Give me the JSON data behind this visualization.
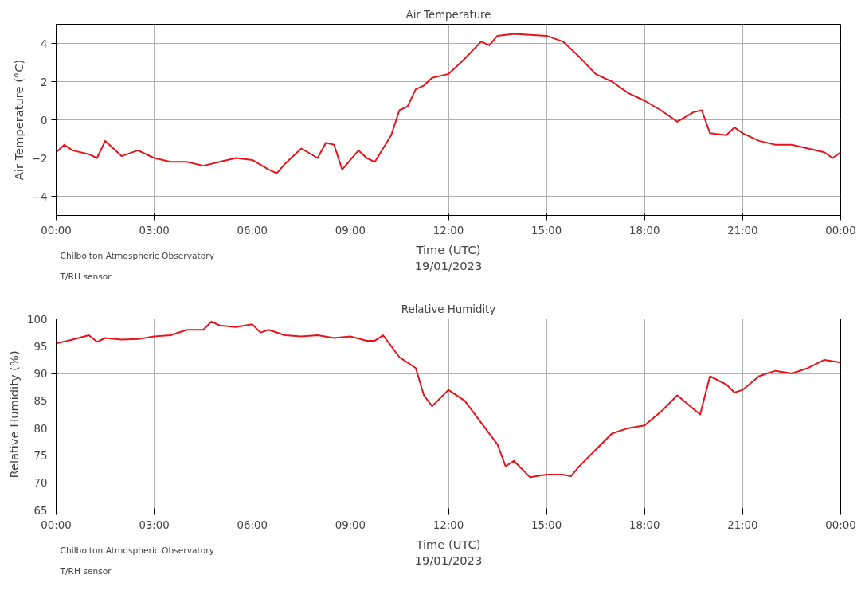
{
  "chart_data": [
    {
      "type": "line",
      "title": "Air Temperature",
      "xlabel": "Time (UTC)\n19/01/2023",
      "ylabel": "Air Temperature (°C)",
      "grid": true,
      "annotations": [
        "Chilbolton Atmospheric Observatory",
        "T/RH sensor"
      ],
      "xlim": [
        0,
        24
      ],
      "xticks": [
        {
          "value": 0,
          "label": "00:00"
        },
        {
          "value": 3,
          "label": "03:00"
        },
        {
          "value": 6,
          "label": "06:00"
        },
        {
          "value": 9,
          "label": "09:00"
        },
        {
          "value": 12,
          "label": "12:00"
        },
        {
          "value": 15,
          "label": "15:00"
        },
        {
          "value": 18,
          "label": "18:00"
        },
        {
          "value": 21,
          "label": "21:00"
        },
        {
          "value": 24,
          "label": "00:00"
        }
      ],
      "ylim": [
        -5,
        5
      ],
      "yticks": [
        -4,
        -2,
        0,
        2,
        4
      ],
      "series": [
        {
          "color": "#e8141c",
          "x": [
            0,
            0.25,
            0.5,
            1,
            1.25,
            1.5,
            1.75,
            2,
            2.5,
            3,
            3.5,
            4,
            4.5,
            5,
            5.5,
            6,
            6.5,
            6.75,
            7,
            7.5,
            8,
            8.25,
            8.5,
            8.75,
            9,
            9.25,
            9.5,
            9.75,
            10,
            10.25,
            10.5,
            10.75,
            11,
            11.25,
            11.5,
            12,
            12.5,
            13,
            13.25,
            13.5,
            14,
            14.5,
            15,
            15.5,
            16,
            16.5,
            17,
            17.5,
            18,
            18.5,
            19,
            19.5,
            19.75,
            20,
            20.5,
            20.75,
            21,
            21.5,
            22,
            22.5,
            23,
            23.5,
            23.75,
            24
          ],
          "values": [
            -1.7,
            -1.3,
            -1.6,
            -1.8,
            -2.0,
            -1.1,
            -1.5,
            -1.9,
            -1.6,
            -2.0,
            -2.2,
            -2.2,
            -2.4,
            -2.2,
            -2.0,
            -2.1,
            -2.6,
            -2.8,
            -2.3,
            -1.5,
            -2.0,
            -1.2,
            -1.3,
            -2.6,
            -2.1,
            -1.6,
            -2.0,
            -2.2,
            -1.5,
            -0.8,
            0.5,
            0.7,
            1.6,
            1.8,
            2.2,
            2.4,
            3.2,
            4.1,
            3.9,
            4.4,
            4.5,
            4.45,
            4.4,
            4.1,
            3.3,
            2.4,
            2.0,
            1.4,
            1.0,
            0.5,
            -0.1,
            0.4,
            0.5,
            -0.7,
            -0.8,
            -0.4,
            -0.7,
            -1.1,
            -1.3,
            -1.3,
            -1.5,
            -1.7,
            -2.0,
            -1.7
          ]
        }
      ]
    },
    {
      "type": "line",
      "title": "Relative Humidity",
      "xlabel": "Time (UTC)\n19/01/2023",
      "ylabel": "Relative Humidity (%)",
      "grid": true,
      "annotations": [
        "Chilbolton Atmospheric Observatory",
        "T/RH sensor"
      ],
      "xlim": [
        0,
        24
      ],
      "xticks": [
        {
          "value": 0,
          "label": "00:00"
        },
        {
          "value": 3,
          "label": "03:00"
        },
        {
          "value": 6,
          "label": "06:00"
        },
        {
          "value": 9,
          "label": "09:00"
        },
        {
          "value": 12,
          "label": "12:00"
        },
        {
          "value": 15,
          "label": "15:00"
        },
        {
          "value": 18,
          "label": "18:00"
        },
        {
          "value": 21,
          "label": "21:00"
        },
        {
          "value": 24,
          "label": "00:00"
        }
      ],
      "ylim": [
        65,
        100
      ],
      "yticks": [
        65,
        70,
        75,
        80,
        85,
        90,
        95,
        100
      ],
      "series": [
        {
          "color": "#e8141c",
          "x": [
            0,
            0.5,
            1,
            1.25,
            1.5,
            2,
            2.5,
            3,
            3.5,
            4,
            4.5,
            4.75,
            5,
            5.5,
            6,
            6.25,
            6.5,
            7,
            7.5,
            8,
            8.5,
            9,
            9.5,
            9.75,
            10,
            10.5,
            11,
            11.25,
            11.5,
            12,
            12.5,
            13,
            13.5,
            13.75,
            14,
            14.5,
            15,
            15.5,
            15.75,
            16,
            16.5,
            17,
            17.5,
            18,
            18.5,
            19,
            19.5,
            19.7,
            20,
            20.5,
            20.75,
            21,
            21.5,
            22,
            22.5,
            23,
            23.5,
            24
          ],
          "values": [
            95.5,
            96.2,
            97,
            95.8,
            96.5,
            96.2,
            96.3,
            96.8,
            97,
            98,
            98,
            99.5,
            98.8,
            98.5,
            99,
            97.5,
            98,
            97,
            96.8,
            97,
            96.5,
            96.8,
            96,
            96,
            97,
            93,
            91,
            86,
            84,
            87,
            85,
            81,
            77,
            73,
            74,
            71,
            71.5,
            71.5,
            71.2,
            73,
            76,
            79,
            80,
            80.5,
            83,
            86,
            83.5,
            82.5,
            89.5,
            88,
            86.5,
            87,
            89.5,
            90.5,
            90,
            91,
            92.5,
            92
          ]
        }
      ]
    }
  ]
}
